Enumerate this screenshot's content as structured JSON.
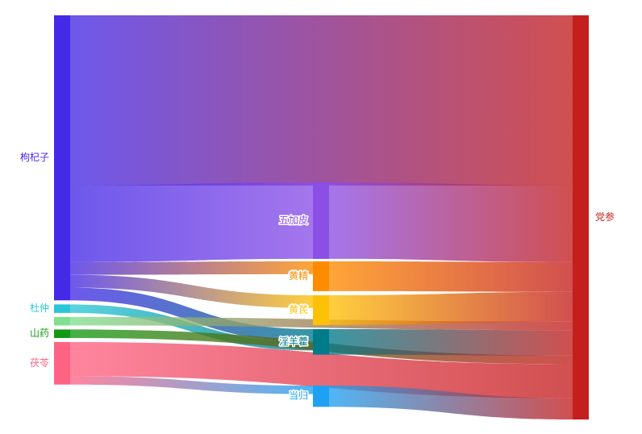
{
  "chart_data": {
    "type": "sankey",
    "nodes": [
      {
        "id": "gouqizi",
        "name": "枸杞子",
        "color": "#4429e6",
        "label_color": "#4429e6",
        "column": 0
      },
      {
        "id": "duzhong",
        "name": "杜仲",
        "color": "#29c7d6",
        "label_color": "#29c7d6",
        "column": 0
      },
      {
        "id": "unlabeled",
        "name": "",
        "color": "#7fe08f",
        "label_color": "#7fe08f",
        "column": 0
      },
      {
        "id": "shanyao",
        "name": "山药",
        "color": "#129a12",
        "label_color": "#129a12",
        "column": 0
      },
      {
        "id": "fuling",
        "name": "茯苓",
        "color": "#ff6384",
        "label_color": "#ff6384",
        "column": 0
      },
      {
        "id": "wujiapi",
        "name": "五加皮",
        "color": "#8b4fe6",
        "label_color": "#ffffff",
        "column": 1
      },
      {
        "id": "huangjing",
        "name": "黄精",
        "color": "#ff8c00",
        "label_color": "#ffffff",
        "column": 1
      },
      {
        "id": "huangqi",
        "name": "黄芪",
        "color": "#ffc107",
        "label_color": "#ffffff",
        "column": 1
      },
      {
        "id": "yinyanghuo",
        "name": "淫羊藿",
        "color": "#007b8a",
        "label_color": "#ffffff",
        "column": 1
      },
      {
        "id": "danggui",
        "name": "当归",
        "color": "#1ea1f2",
        "label_color": "#ffffff",
        "column": 1
      },
      {
        "id": "dangshen",
        "name": "党参",
        "color": "#c41e1e",
        "label_color": "#c41e1e",
        "column": 2
      }
    ],
    "links": [
      {
        "source": "gouqizi",
        "target": "dangshen",
        "value": 40
      },
      {
        "source": "gouqizi",
        "target": "wujiapi",
        "value": 18
      },
      {
        "source": "gouqizi",
        "target": "huangjing",
        "value": 3
      },
      {
        "source": "gouqizi",
        "target": "huangqi",
        "value": 3
      },
      {
        "source": "gouqizi",
        "target": "yinyanghuo",
        "value": 3
      },
      {
        "source": "duzhong",
        "target": "yinyanghuo",
        "value": 2
      },
      {
        "source": "unlabeled",
        "target": "dangshen",
        "value": 2
      },
      {
        "source": "shanyao",
        "target": "dangshen",
        "value": 2
      },
      {
        "source": "fuling",
        "target": "dangshen",
        "value": 8
      },
      {
        "source": "fuling",
        "target": "danggui",
        "value": 2
      },
      {
        "source": "wujiapi",
        "target": "dangshen",
        "value": 18
      },
      {
        "source": "huangjing",
        "target": "dangshen",
        "value": 7
      },
      {
        "source": "huangqi",
        "target": "dangshen",
        "value": 7
      },
      {
        "source": "yinyanghuo",
        "target": "dangshen",
        "value": 6
      },
      {
        "source": "danggui",
        "target": "dangshen",
        "value": 5
      }
    ]
  }
}
